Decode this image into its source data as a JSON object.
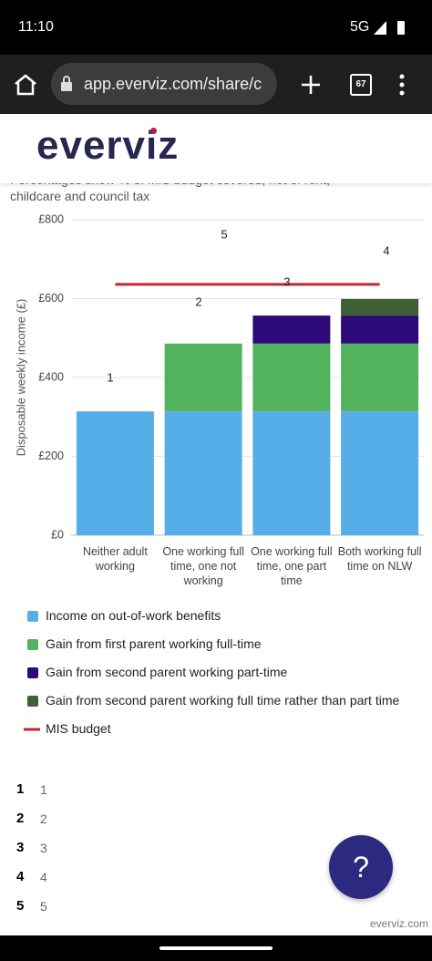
{
  "status_bar": {
    "time": "11:10",
    "network": "5G"
  },
  "browser": {
    "url": "app.everviz.com/share/c",
    "tab_count": "67"
  },
  "header": {
    "logo": "everviz"
  },
  "chart_data": {
    "type": "bar",
    "stacked": true,
    "subtitle": "Percentages show % of MIS budget covered, net of rent, childcare and council tax",
    "y_label": "Disposable weekly income (£)",
    "categories": [
      "Neither adult working",
      "One working full time, one not working",
      "One working full time, one part time",
      "Both working full time on NLW"
    ],
    "series": [
      {
        "name": "Income on out-of-work benefits",
        "color": "#55aee8",
        "values": [
          314,
          314,
          314,
          314
        ]
      },
      {
        "name": "Gain from first parent working full-time",
        "color": "#52b25e",
        "values": [
          0,
          172,
          172,
          172
        ]
      },
      {
        "name": "Gain from second parent working part-time",
        "color": "#2e0a78",
        "values": [
          0,
          0,
          71,
          71
        ]
      },
      {
        "name": "Gain from second parent working full time rather than part time",
        "color": "#3f5f34",
        "values": [
          0,
          0,
          0,
          42
        ]
      },
      {
        "name": "MIS budget",
        "type": "line",
        "color": "#c0282d",
        "values": [
          636,
          636,
          636,
          636
        ]
      }
    ],
    "annotations": [
      "1",
      "2",
      "5",
      "3",
      "4"
    ],
    "ylim": [
      0,
      800
    ],
    "yticks": [
      {
        "value": 0,
        "label": "£0"
      },
      {
        "value": 200,
        "label": "£200"
      },
      {
        "value": 400,
        "label": "£400"
      },
      {
        "value": 600,
        "label": "£600"
      },
      {
        "value": 800,
        "label": "£800"
      }
    ],
    "grid": true,
    "legend": "bottom"
  },
  "notes": [
    {
      "number": "1",
      "text": "1"
    },
    {
      "number": "2",
      "text": "2"
    },
    {
      "number": "3",
      "text": "3"
    },
    {
      "number": "4",
      "text": "4"
    },
    {
      "number": "5",
      "text": "5"
    }
  ],
  "help_button": "?",
  "footer": "everviz.com"
}
